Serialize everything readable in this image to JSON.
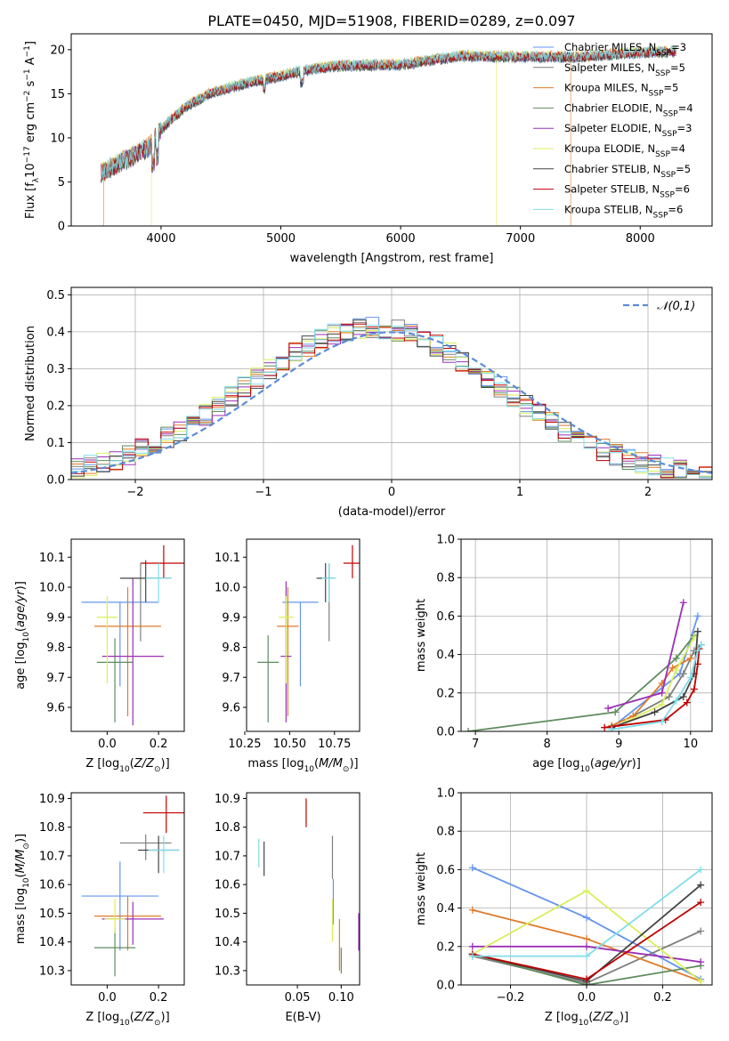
{
  "figure_title": "PLATE=0450, MJD=51908, FIBERID=0289, z=0.097",
  "models": [
    {
      "name": "Chabrier MILES",
      "n_ssp": "3",
      "color": "#6495ED"
    },
    {
      "name": "Salpeter MILES",
      "n_ssp": "5",
      "color": "#7F7F7F"
    },
    {
      "name": "Kroupa MILES",
      "n_ssp": "5",
      "color": "#E07B28"
    },
    {
      "name": "Chabrier ELODIE",
      "n_ssp": "4",
      "color": "#5E8C5E"
    },
    {
      "name": "Salpeter ELODIE",
      "n_ssp": "3",
      "color": "#9B30B5"
    },
    {
      "name": "Kroupa ELODIE",
      "n_ssp": "4",
      "color": "#D9EE5A"
    },
    {
      "name": "Chabrier STELIB",
      "n_ssp": "5",
      "color": "#444444"
    },
    {
      "name": "Salpeter STELIB",
      "n_ssp": "6",
      "color": "#C00000"
    },
    {
      "name": "Kroupa STELIB",
      "n_ssp": "6",
      "color": "#80DDEA"
    }
  ],
  "chart_data": [
    {
      "id": "spectrum",
      "type": "line",
      "xlabel": "wavelength [Angstrom, rest frame]",
      "ylabel": "Flux [f_λ 10^-17 erg cm^-2 s^-1 A^-1]",
      "xlim": [
        3250,
        8600
      ],
      "ylim": [
        0,
        21.8
      ],
      "xticks": [
        4000,
        5000,
        6000,
        7000,
        8000
      ],
      "yticks": [
        0,
        5,
        10,
        15,
        20
      ],
      "wavelength_range": [
        3500,
        8300
      ],
      "continuum": {
        "x": [
          3500,
          3700,
          3900,
          4000,
          4200,
          4400,
          4600,
          4800,
          5000,
          5200,
          5500,
          6000,
          6500,
          7000,
          7500,
          8000,
          8300
        ],
        "y": [
          6,
          7.5,
          9,
          11,
          13.5,
          15,
          15.8,
          16.5,
          17,
          17.7,
          18.2,
          18.3,
          19.3,
          19.2,
          19.2,
          19.7,
          19.8
        ]
      },
      "legend": "upper right"
    },
    {
      "id": "residual_histogram",
      "type": "line",
      "xlabel": "(data-model)/error",
      "ylabel": "Normed distribution",
      "xlim": [
        -2.5,
        2.5
      ],
      "ylim": [
        0,
        0.52
      ],
      "xticks": [
        -2,
        -1,
        0,
        1,
        2
      ],
      "yticks": [
        0,
        0.1,
        0.2,
        0.3,
        0.4,
        0.5
      ],
      "bin_width": 0.1,
      "gaussian_label": "𝒩(0,1)",
      "gaussian_color": "#5B8BD9",
      "grid": true,
      "legend": "upper right"
    },
    {
      "id": "age_vs_Z",
      "type": "scatter",
      "xlabel": "Z [log10(Z/Z⊙)]",
      "ylabel": "age [log10(age/yr)]",
      "xlim": [
        -0.14,
        0.3
      ],
      "ylim": [
        9.52,
        10.16
      ],
      "xticks": [
        0.0,
        0.2
      ],
      "yticks": [
        9.6,
        9.7,
        9.8,
        9.9,
        10.0,
        10.1
      ],
      "points": [
        {
          "x": 0.05,
          "y": 9.95,
          "xerr": 0.15,
          "yerr": [
            0.28,
            0.0
          ]
        },
        {
          "x": 0.13,
          "y": 9.95,
          "xerr": 0.0,
          "yerr": [
            0.13,
            0.13
          ]
        },
        {
          "x": 0.08,
          "y": 9.87,
          "xerr": 0.13,
          "yerr": [
            0.3,
            0.13
          ]
        },
        {
          "x": 0.03,
          "y": 9.75,
          "xerr": 0.07,
          "yerr": [
            0.2,
            0.08
          ]
        },
        {
          "x": 0.1,
          "y": 9.77,
          "xerr": 0.12,
          "yerr": [
            0.23,
            0.26
          ]
        },
        {
          "x": 0.0,
          "y": 9.9,
          "xerr": 0.04,
          "yerr": [
            0.22,
            0.07
          ]
        },
        {
          "x": 0.15,
          "y": 10.03,
          "xerr": 0.1,
          "yerr": [
            0.08,
            0.06
          ]
        },
        {
          "x": 0.22,
          "y": 10.08,
          "xerr": 0.09,
          "yerr": [
            0.05,
            0.06
          ]
        },
        {
          "x": 0.2,
          "y": 10.03,
          "xerr": 0.05,
          "yerr": [
            0.08,
            0.05
          ]
        }
      ]
    },
    {
      "id": "age_vs_mass",
      "type": "scatter",
      "xlabel": "mass [log10(M/M⊙)]",
      "xlim": [
        10.26,
        10.89
      ],
      "ylim": [
        9.52,
        10.16
      ],
      "xticks": [
        10.25,
        10.5,
        10.75
      ],
      "yticks": [
        9.6,
        9.7,
        9.8,
        9.9,
        10.0,
        10.1
      ],
      "points": [
        {
          "x": 10.56,
          "y": 9.95,
          "xerr": 0.1,
          "yerr": [
            0.28,
            0.0
          ]
        },
        {
          "x": 10.72,
          "y": 9.95,
          "xerr": 0.0,
          "yerr": [
            0.13,
            0.13
          ]
        },
        {
          "x": 10.49,
          "y": 9.87,
          "xerr": 0.06,
          "yerr": [
            0.3,
            0.13
          ]
        },
        {
          "x": 10.38,
          "y": 9.75,
          "xerr": 0.06,
          "yerr": [
            0.2,
            0.09
          ]
        },
        {
          "x": 10.48,
          "y": 9.77,
          "xerr": 0.03,
          "yerr": [
            0.22,
            0.25
          ]
        },
        {
          "x": 10.48,
          "y": 9.9,
          "xerr": 0.04,
          "yerr": [
            0.22,
            0.07
          ]
        },
        {
          "x": 10.7,
          "y": 10.03,
          "xerr": 0.05,
          "yerr": [
            0.08,
            0.05
          ]
        },
        {
          "x": 10.85,
          "y": 10.08,
          "xerr": 0.05,
          "yerr": [
            0.05,
            0.06
          ]
        },
        {
          "x": 10.72,
          "y": 10.03,
          "xerr": 0.04,
          "yerr": [
            0.08,
            0.05
          ]
        }
      ]
    },
    {
      "id": "massweight_vs_age",
      "type": "line",
      "xlabel": "age [log10(age/yr)]",
      "ylabel": "mass weight",
      "xlim": [
        6.8,
        10.3
      ],
      "ylim": [
        0,
        1.0
      ],
      "xticks": [
        7,
        8,
        9,
        10
      ],
      "yticks": [
        0.0,
        0.2,
        0.4,
        0.6,
        0.8,
        1.0
      ],
      "grid": true,
      "series": [
        {
          "x": [
            8.9,
            9.85,
            10.1
          ],
          "y": [
            0.02,
            0.3,
            0.6
          ]
        },
        {
          "x": [
            9.2,
            9.7,
            9.9,
            10.05,
            10.15
          ],
          "y": [
            0.08,
            0.18,
            0.3,
            0.42,
            0.45
          ]
        },
        {
          "x": [
            8.9,
            9.2,
            9.6,
            9.75,
            10.0
          ],
          "y": [
            0.03,
            0.08,
            0.25,
            0.33,
            0.38
          ]
        },
        {
          "x": [
            6.9,
            8.95,
            9.8,
            10.05
          ],
          "y": [
            0.0,
            0.1,
            0.38,
            0.5
          ]
        },
        {
          "x": [
            8.85,
            9.6,
            9.9
          ],
          "y": [
            0.12,
            0.2,
            0.67
          ]
        },
        {
          "x": [
            9.1,
            9.6,
            9.8,
            10.05
          ],
          "y": [
            0.05,
            0.14,
            0.32,
            0.49
          ]
        },
        {
          "x": [
            8.9,
            9.5,
            9.9,
            10.05,
            10.1
          ],
          "y": [
            0.02,
            0.1,
            0.18,
            0.3,
            0.52
          ]
        },
        {
          "x": [
            8.8,
            9.65,
            9.95,
            10.05,
            10.1,
            10.12
          ],
          "y": [
            0.02,
            0.06,
            0.15,
            0.22,
            0.35,
            0.43
          ]
        },
        {
          "x": [
            8.9,
            9.6,
            9.8,
            10.0,
            10.1,
            10.15
          ],
          "y": [
            0.01,
            0.05,
            0.16,
            0.28,
            0.42,
            0.45
          ]
        }
      ]
    },
    {
      "id": "mass_vs_Z",
      "type": "scatter",
      "xlabel": "Z [log10(Z/Z⊙)]",
      "ylabel": "mass [log10(M/M⊙)]",
      "xlim": [
        -0.14,
        0.3
      ],
      "ylim": [
        10.25,
        10.92
      ],
      "xticks": [
        0.0,
        0.2
      ],
      "yticks": [
        10.3,
        10.4,
        10.5,
        10.6,
        10.7,
        10.8,
        10.9
      ],
      "points": [
        {
          "x": 0.05,
          "y": 10.56,
          "xerr": 0.15,
          "yerr": [
            0.19,
            0.12
          ]
        },
        {
          "x": 0.15,
          "y": 10.745,
          "xerr": 0.1,
          "yerr": [
            0.06,
            0.03
          ]
        },
        {
          "x": 0.08,
          "y": 10.49,
          "xerr": 0.13,
          "yerr": [
            0.12,
            0.07
          ]
        },
        {
          "x": 0.03,
          "y": 10.38,
          "xerr": 0.08,
          "yerr": [
            0.1,
            0.07
          ]
        },
        {
          "x": 0.1,
          "y": 10.48,
          "xerr": 0.12,
          "yerr": [
            0.09,
            0.06
          ]
        },
        {
          "x": 0.03,
          "y": 10.48,
          "xerr": 0.04,
          "yerr": [
            0.05,
            0.07
          ]
        },
        {
          "x": 0.2,
          "y": 10.72,
          "xerr": 0.08,
          "yerr": [
            0.08,
            0.05
          ]
        },
        {
          "x": 0.23,
          "y": 10.85,
          "xerr": 0.09,
          "yerr": [
            0.07,
            0.06
          ]
        },
        {
          "x": 0.22,
          "y": 10.72,
          "xerr": 0.06,
          "yerr": [
            0.08,
            0.05
          ]
        }
      ]
    },
    {
      "id": "mass_vs_ebv",
      "type": "scatter",
      "xlabel": "E(B-V)",
      "xlim": [
        -0.008,
        0.121
      ],
      "ylim": [
        10.25,
        10.92
      ],
      "xticks": [
        0.05,
        0.1
      ],
      "yticks": [
        10.3,
        10.4,
        10.5,
        10.6,
        10.7,
        10.8,
        10.9
      ],
      "points": [
        {
          "x": 0.091,
          "y": 10.56,
          "yerr": [
            0.1,
            0.06
          ]
        },
        {
          "x": 0.09,
          "y": 10.7,
          "yerr": [
            0.08,
            0.07
          ]
        },
        {
          "x": 0.098,
          "y": 10.38,
          "yerr": [
            0.08,
            0.1
          ]
        },
        {
          "x": 0.1,
          "y": 10.33,
          "yerr": [
            0.04,
            0.05
          ]
        },
        {
          "x": 0.12,
          "y": 10.43,
          "yerr": [
            0.06,
            0.07
          ]
        },
        {
          "x": 0.09,
          "y": 10.48,
          "yerr": [
            0.08,
            0.07
          ]
        },
        {
          "x": 0.012,
          "y": 10.69,
          "yerr": [
            0.06,
            0.06
          ]
        },
        {
          "x": 0.06,
          "y": 10.85,
          "yerr": [
            0.05,
            0.05
          ]
        },
        {
          "x": 0.006,
          "y": 10.71,
          "yerr": [
            0.05,
            0.05
          ]
        }
      ]
    },
    {
      "id": "massweight_vs_Z",
      "type": "line",
      "xlabel": "Z [log10(Z/Z⊙)]",
      "ylabel": "mass weight",
      "xlim": [
        -0.33,
        0.33
      ],
      "ylim": [
        0,
        1.0
      ],
      "xticks": [
        -0.2,
        0.0,
        0.2
      ],
      "yticks": [
        0.0,
        0.2,
        0.4,
        0.6,
        0.8,
        1.0
      ],
      "grid": true,
      "series": [
        {
          "x": [
            -0.3,
            0.0,
            0.3
          ],
          "y": [
            0.61,
            0.35,
            0.03
          ]
        },
        {
          "x": [
            -0.3,
            0.0,
            0.3
          ],
          "y": [
            0.15,
            0.01,
            0.28
          ]
        },
        {
          "x": [
            -0.3,
            0.0,
            0.3
          ],
          "y": [
            0.39,
            0.24,
            0.02
          ]
        },
        {
          "x": [
            -0.3,
            0.0,
            0.3
          ],
          "y": [
            0.16,
            0.0,
            0.1
          ]
        },
        {
          "x": [
            -0.3,
            0.0,
            0.3
          ],
          "y": [
            0.2,
            0.2,
            0.12
          ]
        },
        {
          "x": [
            -0.3,
            0.0,
            0.3
          ],
          "y": [
            0.16,
            0.49,
            0.02
          ]
        },
        {
          "x": [
            -0.3,
            0.0,
            0.3
          ],
          "y": [
            0.16,
            0.02,
            0.52
          ]
        },
        {
          "x": [
            -0.3,
            0.0,
            0.3
          ],
          "y": [
            0.16,
            0.03,
            0.43
          ]
        },
        {
          "x": [
            -0.3,
            0.0,
            0.3
          ],
          "y": [
            0.15,
            0.15,
            0.6
          ]
        }
      ]
    }
  ]
}
